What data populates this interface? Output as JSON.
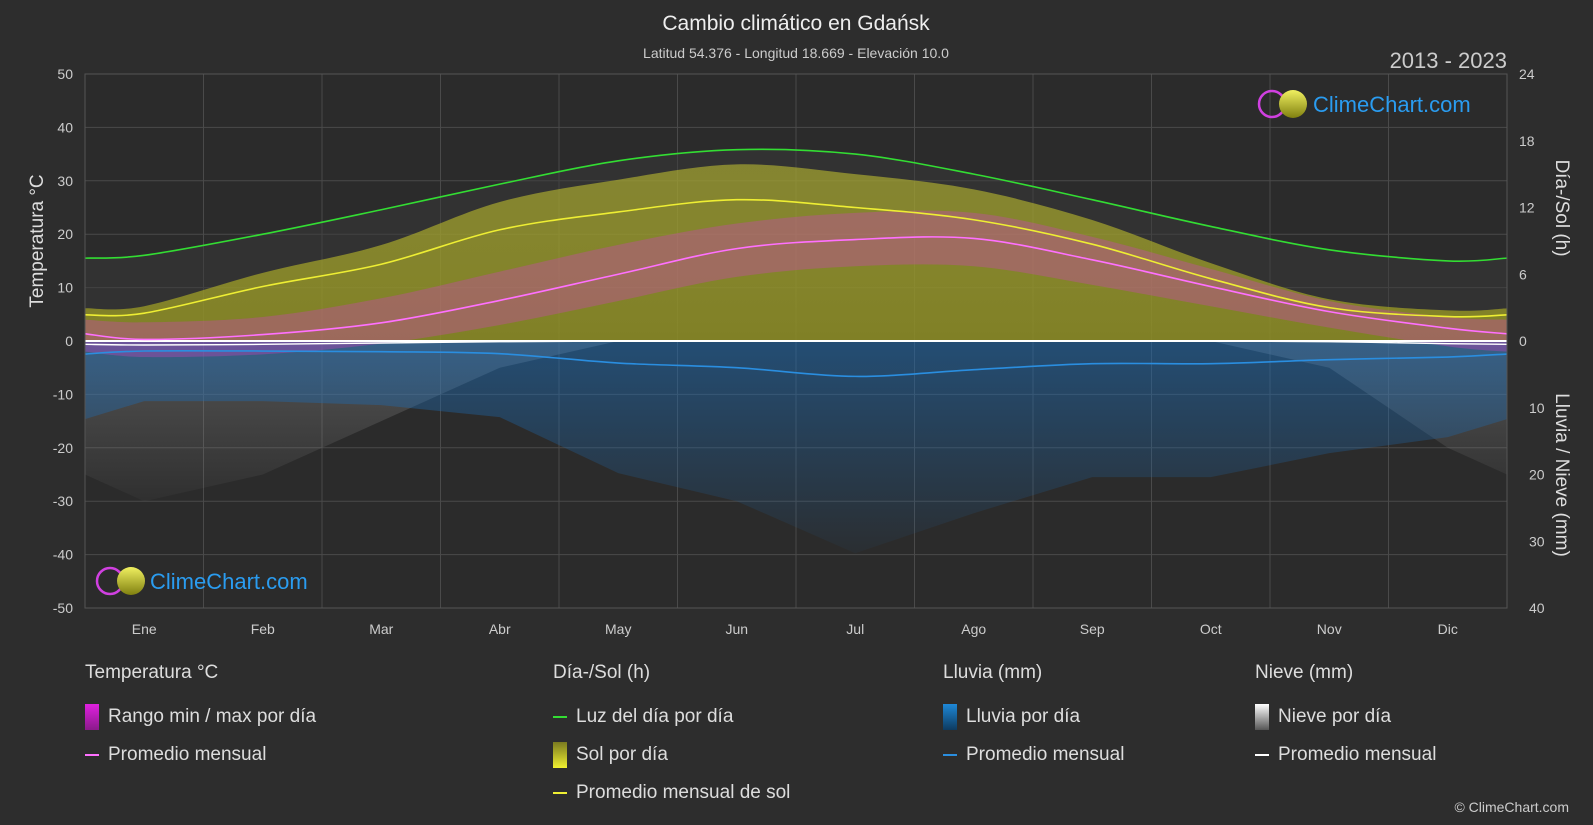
{
  "header": {
    "title": "Cambio climático en Gdańsk",
    "subtitle": "Latitud 54.376 - Longitud 18.669 - Elevación 10.0",
    "years": "2013 - 2023"
  },
  "brand": {
    "text": "ClimeChart.com",
    "copyright": "© ClimeChart.com"
  },
  "chart_data": {
    "type": "area",
    "x": [
      "Ene",
      "Feb",
      "Mar",
      "Abr",
      "May",
      "Jun",
      "Jul",
      "Ago",
      "Sep",
      "Oct",
      "Nov",
      "Dic"
    ],
    "axes": {
      "left": {
        "label": "Temperatura °C",
        "range": [
          -50,
          50
        ],
        "ticks": [
          50,
          40,
          30,
          20,
          10,
          0,
          -10,
          -20,
          -30,
          -40,
          -50
        ]
      },
      "right_top": {
        "label": "Día-/Sol (h)",
        "range": [
          0,
          24
        ],
        "ticks": [
          24,
          18,
          12,
          6,
          0
        ]
      },
      "right_bottom": {
        "label": "Lluvia / Nieve (mm)",
        "range": [
          0,
          40
        ],
        "ticks": [
          0,
          10,
          20,
          30,
          40
        ]
      }
    },
    "grid": true,
    "series": [
      {
        "name": "Luz del día por día",
        "axis": "hours",
        "values": [
          7.7,
          9.6,
          11.8,
          14.1,
          16.2,
          17.2,
          16.8,
          15.0,
          12.7,
          10.3,
          8.2,
          7.2
        ]
      },
      {
        "name": "Promedio mensual de sol",
        "axis": "hours",
        "values": [
          2.5,
          4.9,
          6.9,
          10.0,
          11.6,
          12.7,
          12.0,
          10.9,
          8.7,
          5.6,
          3.0,
          2.2
        ]
      },
      {
        "name": "Promedio mensual",
        "group": "Temperatura °C",
        "axis": "temp",
        "values": [
          0.3,
          1.2,
          3.4,
          7.6,
          12.5,
          17.3,
          19.0,
          19.2,
          15.2,
          10.2,
          5.5,
          2.4
        ]
      },
      {
        "name": "Sol por día",
        "axis": "hours",
        "values": [
          2.5,
          4.9,
          6.9,
          10.0,
          11.6,
          12.7,
          12.0,
          10.9,
          8.7,
          5.6,
          3.0,
          2.2
        ]
      },
      {
        "name": "Rango min / max por día",
        "axis": "temp",
        "min": [
          -3.0,
          -2.5,
          -0.5,
          3.0,
          7.5,
          12.0,
          14.0,
          14.0,
          10.5,
          6.5,
          2.5,
          -1.0
        ],
        "max": [
          3.5,
          4.5,
          8.0,
          13.0,
          18.0,
          22.0,
          24.0,
          24.0,
          19.5,
          13.5,
          7.5,
          4.5
        ]
      },
      {
        "name": "Promedio mensual",
        "group": "Lluvia (mm)",
        "axis": "precip",
        "values": [
          1.5,
          1.5,
          1.6,
          1.9,
          3.3,
          4.0,
          5.3,
          4.3,
          3.4,
          3.4,
          2.8,
          2.4
        ]
      },
      {
        "name": "Promedio mensual",
        "group": "Nieve (mm)",
        "axis": "precip",
        "values": [
          0.6,
          0.5,
          0.3,
          0.1,
          0.0,
          0.0,
          0.0,
          0.0,
          0.0,
          0.0,
          0.1,
          0.4
        ]
      }
    ]
  },
  "legend": {
    "groups": [
      {
        "title": "Temperatura °C",
        "items": [
          {
            "label": "Rango min / max por día",
            "kind": "box",
            "color": "#e020e0"
          },
          {
            "label": "Promedio mensual",
            "kind": "line",
            "color": "#ff70ff"
          }
        ]
      },
      {
        "title": "Día-/Sol (h)",
        "items": [
          {
            "label": "Luz del día por día",
            "kind": "line",
            "color": "#33dd33"
          },
          {
            "label": "Sol por día",
            "kind": "box",
            "color": "#d8d820"
          },
          {
            "label": "Promedio mensual de sol",
            "kind": "line",
            "color": "#eeee33"
          }
        ]
      },
      {
        "title": "Lluvia (mm)",
        "items": [
          {
            "label": "Lluvia por día",
            "kind": "box",
            "color": "#1e88d8"
          },
          {
            "label": "Promedio mensual",
            "kind": "line",
            "color": "#2a8ee0"
          }
        ]
      },
      {
        "title": "Nieve (mm)",
        "items": [
          {
            "label": "Nieve por día",
            "kind": "box",
            "color": "#cccccc"
          },
          {
            "label": "Promedio mensual",
            "kind": "line",
            "color": "#ffffff"
          }
        ]
      }
    ]
  }
}
